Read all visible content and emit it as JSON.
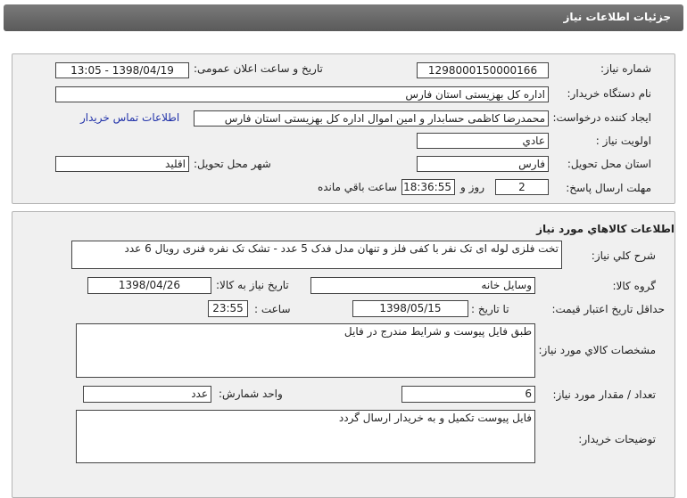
{
  "header": {
    "title": "جزئیات اطلاعات نیاز"
  },
  "need": {
    "number_label": "شماره نیاز:",
    "number": "1298000150000166",
    "announce_label": "تاریخ و ساعت اعلان عمومی:",
    "announce": "1398/04/19 - 13:05",
    "buyer_label": "نام دستگاه خریدار:",
    "buyer": "اداره کل بهزیستی استان فارس",
    "creator_label": "ایجاد کننده درخواست:",
    "creator": "محمدرضا کاظمی حسابدار و امین اموال اداره کل بهزیستی استان فارس",
    "contact_link": "اطلاعات تماس خریدار",
    "priority_label": "اولویت نیاز :",
    "priority": "عادي",
    "province_label": "استان محل تحویل:",
    "province": "فارس",
    "city_label": "شهر محل تحویل:",
    "city": "اقلید",
    "deadline_label": "مهلت ارسال پاسخ:",
    "days": "2",
    "days_suffix": "روز و",
    "time_left": "18:36:55",
    "remaining": "ساعت باقي مانده"
  },
  "goods": {
    "title": "اطلاعات کالاهاي مورد نیاز",
    "desc_label": "شرح کلي نیاز:",
    "desc": "تخت فلزی لوله ای تک نفر با کفی فلز و تنهان مدل فدک 5 عدد - تشک تک نفره فنری رویال 6 عدد",
    "group_label": "گروه کالا:",
    "group": "وسایل خانه",
    "need_date_label": "تاریخ نیاز به کالا:",
    "need_date": "1398/04/26",
    "validity_label": "حداقل تاریخ اعتبار قیمت:",
    "to_date_label": "تا تاریخ :",
    "to_date": "1398/05/15",
    "time_label": "ساعت :",
    "time": "23:55",
    "spec_label": "مشخصات کالاي مورد نیاز:",
    "spec": "طبق فایل پیوست و شرایط مندرج در فایل",
    "qty_label": "تعداد / مقدار مورد نیاز:",
    "qty": "6",
    "unit_label": "واحد شمارش:",
    "unit": "عدد",
    "notes_label": "توضیحات خریدار:",
    "notes": "فایل پیوست تکمیل و به خریدار ارسال گردد"
  }
}
